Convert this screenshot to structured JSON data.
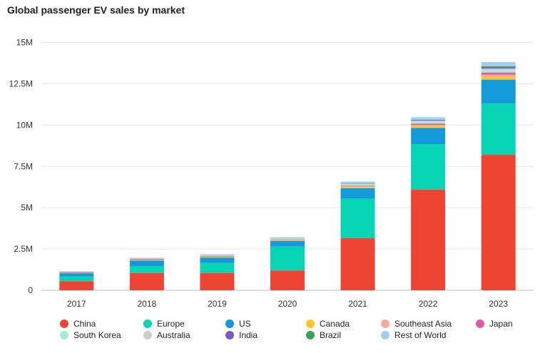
{
  "chart_data": {
    "type": "bar",
    "stacked": true,
    "title": "Global passenger EV sales by market",
    "xlabel": "",
    "ylabel": "",
    "ylim": [
      0,
      15000000
    ],
    "yticks": [
      {
        "value": 0,
        "label": "0"
      },
      {
        "value": 2500000,
        "label": "2.5M"
      },
      {
        "value": 5000000,
        "label": "5M"
      },
      {
        "value": 7500000,
        "label": "7.5M"
      },
      {
        "value": 10000000,
        "label": "10M"
      },
      {
        "value": 12500000,
        "label": "12.5M"
      },
      {
        "value": 15000000,
        "label": "15M"
      }
    ],
    "grid": true,
    "legend_position": "bottom",
    "categories": [
      "2017",
      "2018",
      "2019",
      "2020",
      "2021",
      "2022",
      "2023"
    ],
    "series": [
      {
        "name": "China",
        "color": "#ee4433",
        "values": [
          550000,
          1050000,
          1050000,
          1200000,
          3150000,
          6100000,
          8200000
        ]
      },
      {
        "name": "Europe",
        "color": "#06d4b4",
        "values": [
          280000,
          400000,
          600000,
          1450000,
          2400000,
          2750000,
          3100000
        ]
      },
      {
        "name": "US",
        "color": "#1499da",
        "values": [
          200000,
          350000,
          330000,
          330000,
          630000,
          970000,
          1450000
        ]
      },
      {
        "name": "Canada",
        "color": "#fdc72a",
        "values": [
          20000,
          40000,
          50000,
          50000,
          80000,
          120000,
          180000
        ]
      },
      {
        "name": "Southeast Asia",
        "color": "#f5a9a1",
        "values": [
          3000,
          6000,
          10000,
          15000,
          30000,
          60000,
          120000
        ]
      },
      {
        "name": "Japan",
        "color": "#e05aa8",
        "values": [
          50000,
          50000,
          40000,
          30000,
          40000,
          90000,
          130000
        ]
      },
      {
        "name": "South Korea",
        "color": "#a4ecd8",
        "values": [
          15000,
          30000,
          40000,
          50000,
          100000,
          130000,
          150000
        ]
      },
      {
        "name": "Australia",
        "color": "#cccccc",
        "values": [
          5000,
          5000,
          8000,
          10000,
          20000,
          40000,
          90000
        ]
      },
      {
        "name": "India",
        "color": "#7a59c4",
        "values": [
          2000,
          3000,
          5000,
          6000,
          15000,
          40000,
          80000
        ]
      },
      {
        "name": "Brazil",
        "color": "#3fa152",
        "values": [
          1000,
          2000,
          3000,
          5000,
          10000,
          20000,
          60000
        ]
      },
      {
        "name": "Rest of World",
        "color": "#a0cdf0",
        "values": [
          20000,
          30000,
          40000,
          60000,
          100000,
          150000,
          250000
        ]
      }
    ]
  }
}
